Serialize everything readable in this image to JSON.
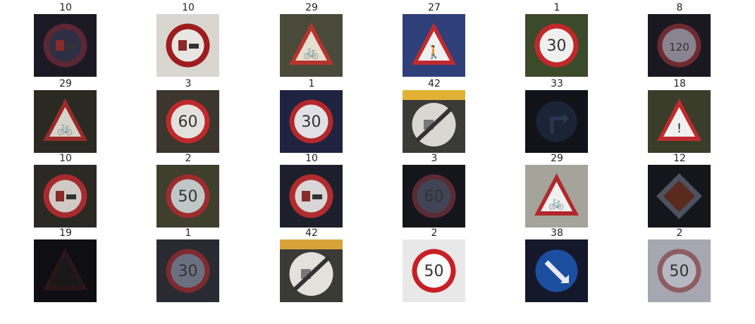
{
  "figure": {
    "images": [
      {
        "label": "10",
        "sign": "no-overtaking-trucks",
        "colors": {
          "bg": "#1b1a24",
          "rim": "#5a2732",
          "face": "#2e2f44"
        },
        "text": ""
      },
      {
        "label": "10",
        "sign": "no-overtaking-trucks",
        "colors": {
          "bg": "#d9d6d0",
          "rim": "#9e1c1e",
          "face": "#e8e6e2"
        },
        "text": ""
      },
      {
        "label": "29",
        "sign": "warning-triangle",
        "colors": {
          "bg": "#4a4a3a",
          "rim": "#b7342c",
          "face": "#e4dfd0"
        },
        "text": "🚲"
      },
      {
        "label": "27",
        "sign": "warning-triangle",
        "colors": {
          "bg": "#2f3f7a",
          "rim": "#c02a2e",
          "face": "#f0f0f0"
        },
        "text": "🚶"
      },
      {
        "label": "1",
        "sign": "speed-limit",
        "colors": {
          "bg": "#3c4a2c",
          "rim": "#c0282a",
          "face": "#efefef"
        },
        "text": "30"
      },
      {
        "label": "8",
        "sign": "speed-limit",
        "colors": {
          "bg": "#1a1820",
          "rim": "#6e2a30",
          "face": "#8a8390"
        },
        "text": "120"
      },
      {
        "label": "29",
        "sign": "warning-triangle",
        "colors": {
          "bg": "#2a2a22",
          "rim": "#9a2a28",
          "face": "#d8d3c8"
        },
        "text": "🚲"
      },
      {
        "label": "3",
        "sign": "speed-limit",
        "colors": {
          "bg": "#3b362e",
          "rim": "#c0282a",
          "face": "#e4e1dc"
        },
        "text": "60"
      },
      {
        "label": "1",
        "sign": "speed-limit",
        "colors": {
          "bg": "#1f2340",
          "rim": "#b3272b",
          "face": "#e1e0e4"
        },
        "text": "30"
      },
      {
        "label": "42",
        "sign": "end-no-overtaking",
        "colors": {
          "bg": "#e0b133",
          "rim": "#d8d7d2",
          "face": "#cfcac2"
        },
        "text": ""
      },
      {
        "label": "33",
        "sign": "blue-arrow",
        "colors": {
          "bg": "#121319",
          "rim": "#1e2b40",
          "face": "#1b2437"
        },
        "text": ""
      },
      {
        "label": "18",
        "sign": "warning-triangle",
        "colors": {
          "bg": "#3a3d2a",
          "rim": "#c02a2e",
          "face": "#f0f0f0"
        },
        "text": "!"
      },
      {
        "label": "10",
        "sign": "no-overtaking-trucks",
        "colors": {
          "bg": "#2a2924",
          "rim": "#a62a2e",
          "face": "#cfcbc4"
        },
        "text": ""
      },
      {
        "label": "2",
        "sign": "speed-limit",
        "colors": {
          "bg": "#3f3f2e",
          "rim": "#9c2d2c",
          "face": "#bfc7c7"
        },
        "text": "50"
      },
      {
        "label": "10",
        "sign": "no-overtaking-trucks",
        "colors": {
          "bg": "#1d1f2b",
          "rim": "#b02c2e",
          "face": "#d8d6d6"
        },
        "text": ""
      },
      {
        "label": "3",
        "sign": "speed-limit",
        "colors": {
          "bg": "#15151c",
          "rim": "#5c2a33",
          "face": "#404455"
        },
        "text": "60"
      },
      {
        "label": "29",
        "sign": "warning-triangle",
        "colors": {
          "bg": "#a4a49a",
          "rim": "#b2282b",
          "face": "#f0f0f0"
        },
        "text": "🚲"
      },
      {
        "label": "12",
        "sign": "priority-road",
        "colors": {
          "bg": "#15151c",
          "rim": "#4d5260",
          "face": "#5a2a1e"
        },
        "text": ""
      },
      {
        "label": "19",
        "sign": "warning-triangle-dark",
        "colors": {
          "bg": "#0f0e12",
          "rim": "#2a1618",
          "face": "#1a1719"
        },
        "text": ""
      },
      {
        "label": "1",
        "sign": "speed-limit",
        "colors": {
          "bg": "#2a2a32",
          "rim": "#7e2a2e",
          "face": "#6a7080"
        },
        "text": "30"
      },
      {
        "label": "42",
        "sign": "end-no-overtaking",
        "colors": {
          "bg": "#d8a43a",
          "rim": "#e2e1db",
          "face": "#d2ccc3"
        },
        "text": ""
      },
      {
        "label": "2",
        "sign": "speed-limit",
        "colors": {
          "bg": "#e8e8e8",
          "rim": "#c81f24",
          "face": "#fafafa"
        },
        "text": "50"
      },
      {
        "label": "38",
        "sign": "blue-keep-right",
        "colors": {
          "bg": "#15182a",
          "rim": "#1c4ea0",
          "face": "#1c4ea0"
        },
        "text": ""
      },
      {
        "label": "2",
        "sign": "speed-limit",
        "colors": {
          "bg": "#a6a7b0",
          "rim": "#8d5d62",
          "face": "#b6b8c2"
        },
        "text": "50"
      }
    ]
  }
}
